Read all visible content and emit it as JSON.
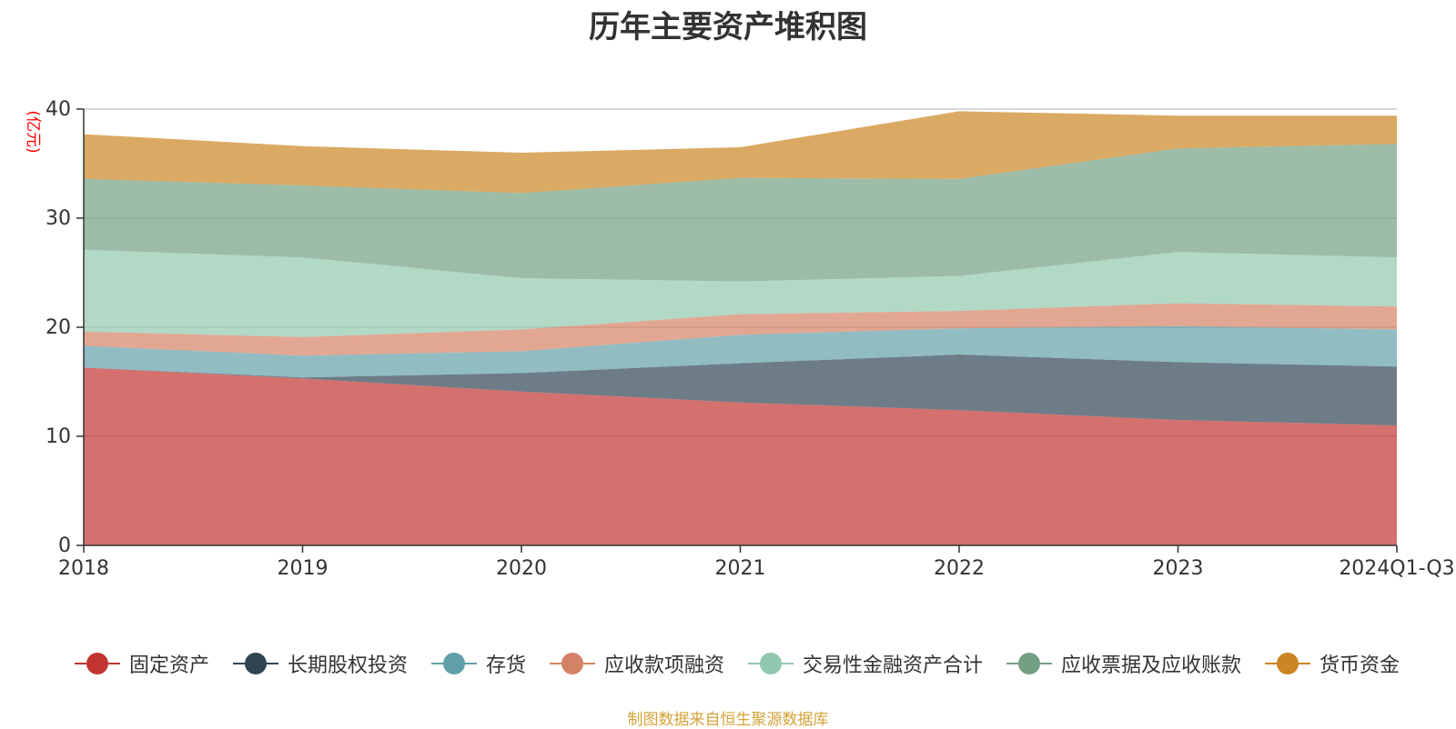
{
  "chart_data": {
    "type": "area",
    "stacked": true,
    "title": "历年主要资产堆积图",
    "ylabel": "(亿元)",
    "xlabel": "",
    "ylim": [
      0,
      40
    ],
    "yticks": [
      0,
      10,
      20,
      30,
      40
    ],
    "categories": [
      "2018",
      "2019",
      "2020",
      "2021",
      "2022",
      "2023",
      "2024Q1-Q3"
    ],
    "series": [
      {
        "name": "固定资产",
        "color": "#c23531",
        "values": [
          16.3,
          15.3,
          14.1,
          13.1,
          12.4,
          11.5,
          11.0
        ]
      },
      {
        "name": "长期股权投资",
        "color": "#2f4554",
        "values": [
          0.0,
          0.1,
          1.7,
          3.6,
          5.1,
          5.3,
          5.4
        ]
      },
      {
        "name": "存货",
        "color": "#61a0a8",
        "values": [
          2.0,
          2.0,
          2.0,
          2.6,
          2.4,
          3.3,
          3.4
        ]
      },
      {
        "name": "应收款项融资",
        "color": "#d48265",
        "values": [
          1.3,
          1.7,
          2.0,
          1.9,
          1.6,
          2.1,
          2.1
        ]
      },
      {
        "name": "交易性金融资产合计",
        "color": "#91c7ae",
        "values": [
          7.5,
          7.3,
          4.7,
          3.0,
          3.2,
          4.7,
          4.5
        ]
      },
      {
        "name": "应收票据及应收账款",
        "color": "#749f83",
        "values": [
          6.5,
          6.6,
          7.8,
          9.5,
          8.9,
          9.5,
          10.4
        ]
      },
      {
        "name": "货币资金",
        "color": "#ca8622",
        "values": [
          4.1,
          3.6,
          3.7,
          2.8,
          6.2,
          3.0,
          2.6
        ]
      }
    ]
  },
  "source_note": "制图数据来自恒生聚源数据库"
}
